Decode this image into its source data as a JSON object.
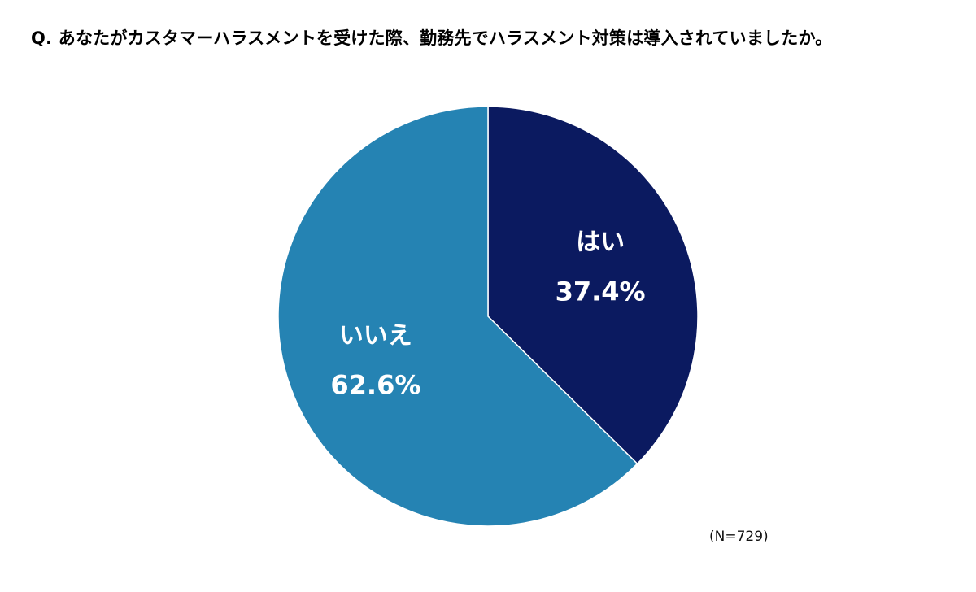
{
  "chart_data": {
    "type": "pie",
    "title": "Q. あなたがカスタマーハラスメントを受けた際、勤務先でハラスメント対策は導入されていましたか。",
    "slices": [
      {
        "label": "はい",
        "value": 37.4,
        "value_label": "37.4%",
        "color": "#0b1a60"
      },
      {
        "label": "いいえ",
        "value": 62.6,
        "value_label": "62.6%",
        "color": "#2583b3"
      }
    ],
    "start_angle": "12 o'clock",
    "direction": "clockwise",
    "legend": "none",
    "note": "(N=729)"
  }
}
